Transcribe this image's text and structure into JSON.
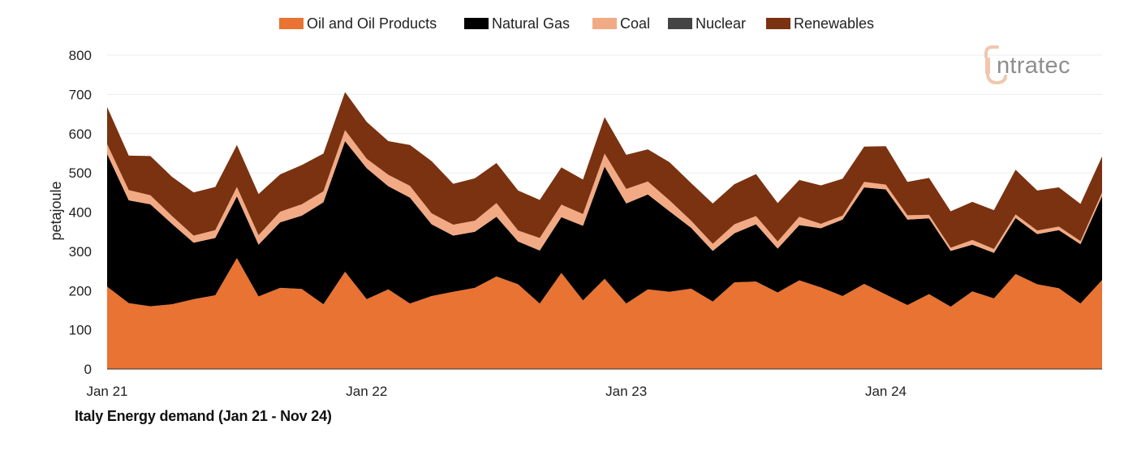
{
  "chart_data": {
    "type": "area",
    "stacked": true,
    "x": [
      "2021-01",
      "2021-02",
      "2021-03",
      "2021-04",
      "2021-05",
      "2021-06",
      "2021-07",
      "2021-08",
      "2021-09",
      "2021-10",
      "2021-11",
      "2021-12",
      "2022-01",
      "2022-02",
      "2022-03",
      "2022-04",
      "2022-05",
      "2022-06",
      "2022-07",
      "2022-08",
      "2022-09",
      "2022-10",
      "2022-11",
      "2022-12",
      "2023-01",
      "2023-02",
      "2023-03",
      "2023-04",
      "2023-05",
      "2023-06",
      "2023-07",
      "2023-08",
      "2023-09",
      "2023-10",
      "2023-11",
      "2023-12",
      "2024-01",
      "2024-02",
      "2024-03",
      "2024-04",
      "2024-05",
      "2024-06",
      "2024-07",
      "2024-08",
      "2024-09",
      "2024-10",
      "2024-11"
    ],
    "x_tick_labels": [
      {
        "x": "2021-01",
        "label": "Jan 21"
      },
      {
        "x": "2022-01",
        "label": "Jan 22"
      },
      {
        "x": "2023-01",
        "label": "Jan 23"
      },
      {
        "x": "2024-01",
        "label": "Jan 24"
      }
    ],
    "ylabel": "petajoule",
    "ylim": [
      0,
      800
    ],
    "yticks": [
      0,
      100,
      200,
      300,
      400,
      500,
      600,
      700,
      800
    ],
    "grid": true,
    "legend_position": "top",
    "series": [
      {
        "name": "Oil and Oil Products",
        "color": "#e87333",
        "values": [
          210,
          168,
          160,
          165,
          178,
          188,
          283,
          185,
          207,
          204,
          165,
          248,
          178,
          203,
          167,
          186,
          197,
          207,
          236,
          216,
          167,
          245,
          175,
          230,
          167,
          203,
          197,
          205,
          172,
          221,
          223,
          195,
          226,
          208,
          186,
          217,
          190,
          163,
          191,
          159,
          198,
          180,
          242,
          216,
          206,
          167,
          227
        ]
      },
      {
        "name": "Natural Gas",
        "color": "#000000",
        "values": [
          338,
          262,
          260,
          205,
          144,
          146,
          157,
          132,
          167,
          187,
          260,
          333,
          334,
          263,
          270,
          183,
          143,
          143,
          152,
          109,
          135,
          142,
          190,
          286,
          255,
          242,
          205,
          155,
          129,
          125,
          146,
          112,
          141,
          151,
          195,
          246,
          268,
          218,
          193,
          142,
          119,
          116,
          143,
          128,
          148,
          151,
          214
        ]
      },
      {
        "name": "Coal",
        "color": "#f2aa84",
        "values": [
          25,
          26,
          23,
          20,
          18,
          20,
          24,
          24,
          27,
          29,
          28,
          28,
          24,
          29,
          30,
          28,
          28,
          28,
          35,
          28,
          32,
          32,
          30,
          33,
          37,
          33,
          28,
          18,
          18,
          23,
          21,
          18,
          21,
          11,
          10,
          14,
          12,
          11,
          9,
          8,
          12,
          10,
          9,
          9,
          9,
          8,
          9
        ]
      },
      {
        "name": "Nuclear",
        "color": "#444444",
        "values": [
          0,
          0,
          0,
          0,
          0,
          0,
          0,
          0,
          0,
          0,
          0,
          0,
          0,
          0,
          0,
          0,
          0,
          0,
          0,
          0,
          0,
          0,
          0,
          0,
          0,
          0,
          0,
          0,
          0,
          0,
          0,
          0,
          0,
          0,
          0,
          0,
          0,
          0,
          0,
          0,
          0,
          0,
          0,
          0,
          0,
          0,
          0
        ]
      },
      {
        "name": "Renewables",
        "color": "#7a3210",
        "values": [
          95,
          88,
          100,
          100,
          110,
          110,
          107,
          105,
          95,
          100,
          96,
          97,
          94,
          86,
          104,
          133,
          104,
          108,
          102,
          102,
          97,
          95,
          88,
          93,
          87,
          82,
          97,
          96,
          103,
          102,
          107,
          98,
          94,
          98,
          94,
          90,
          98,
          85,
          94,
          93,
          97,
          99,
          114,
          102,
          100,
          95,
          92
        ]
      }
    ]
  },
  "caption": "Italy Energy demand (Jan 21 - Nov 24)",
  "brand": {
    "name_rest": "ntratec",
    "logo_color": "#f0c7ae",
    "text_color": "#8e8e8e"
  }
}
